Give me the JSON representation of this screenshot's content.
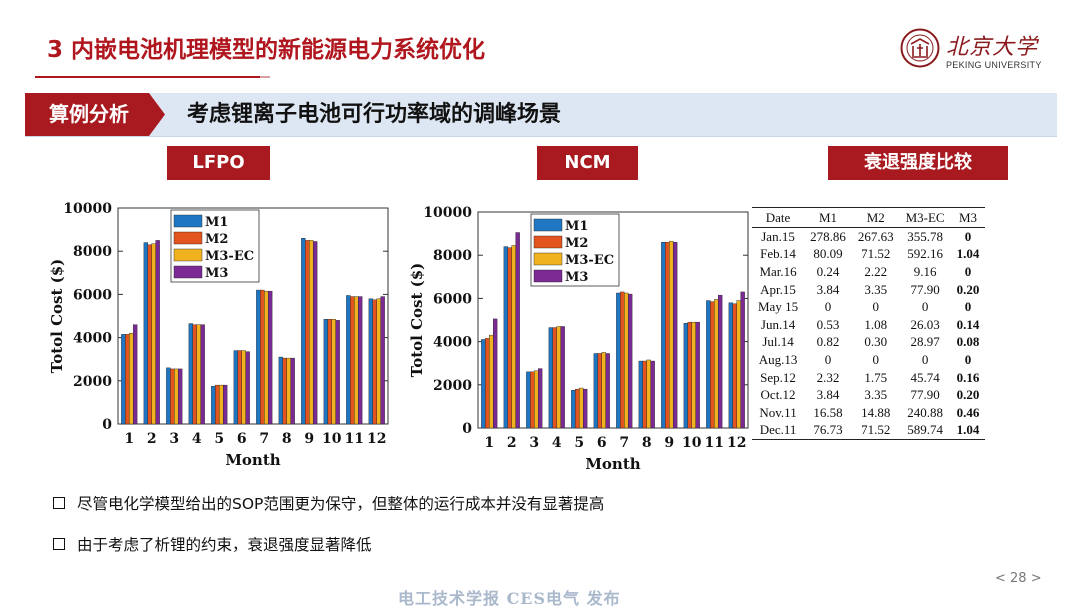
{
  "header": {
    "title": "3 内嵌电池机理模型的新能源电力系统优化",
    "logo_name": "北京大学",
    "logo_sub": "PEKING UNIVERSITY"
  },
  "section": {
    "tag": "算例分析",
    "subtitle": "考虑锂离子电池可行功率域的调峰场景"
  },
  "labels": {
    "lfpo": "LFPO",
    "ncm": "NCM",
    "degradation": "衰退强度比较"
  },
  "colors": {
    "M1": "#1f77c4",
    "M2": "#e3541e",
    "M3-EC": "#f0b21e",
    "M3": "#7b2a94",
    "brand_red": "#a81a1f"
  },
  "chart_data": [
    {
      "type": "bar",
      "name": "LFPO",
      "categories": [
        "1",
        "2",
        "3",
        "4",
        "5",
        "6",
        "7",
        "8",
        "9",
        "10",
        "11",
        "12"
      ],
      "xlabel": "Month",
      "ylabel": "Totol Cost ($)",
      "ylim": [
        0,
        10000
      ],
      "yticks": [
        0,
        2000,
        4000,
        6000,
        8000,
        10000
      ],
      "legend_position": "top-left",
      "series": [
        {
          "name": "M1",
          "values": [
            4150,
            8400,
            2600,
            4650,
            1750,
            3400,
            6200,
            3100,
            8600,
            4850,
            5950,
            5800
          ]
        },
        {
          "name": "M2",
          "values": [
            4150,
            8300,
            2550,
            4600,
            1800,
            3400,
            6200,
            3050,
            8500,
            4850,
            5900,
            5750
          ]
        },
        {
          "name": "M3-EC",
          "values": [
            4200,
            8350,
            2550,
            4600,
            1800,
            3400,
            6150,
            3050,
            8500,
            4850,
            5900,
            5800
          ]
        },
        {
          "name": "M3",
          "values": [
            4600,
            8500,
            2550,
            4600,
            1800,
            3350,
            6150,
            3050,
            8450,
            4800,
            5900,
            5900
          ]
        }
      ]
    },
    {
      "type": "bar",
      "name": "NCM",
      "categories": [
        "1",
        "2",
        "3",
        "4",
        "5",
        "6",
        "7",
        "8",
        "9",
        "10",
        "11",
        "12"
      ],
      "xlabel": "Month",
      "ylabel": "Totol Cost ($)",
      "ylim": [
        0,
        10000
      ],
      "yticks": [
        0,
        2000,
        4000,
        6000,
        8000,
        10000
      ],
      "legend_position": "top-left",
      "series": [
        {
          "name": "M1",
          "values": [
            4100,
            8400,
            2600,
            4650,
            1750,
            3450,
            6250,
            3100,
            8600,
            4850,
            5900,
            5800
          ]
        },
        {
          "name": "M2",
          "values": [
            4150,
            8350,
            2600,
            4650,
            1800,
            3450,
            6300,
            3100,
            8600,
            4900,
            5850,
            5750
          ]
        },
        {
          "name": "M3-EC",
          "values": [
            4300,
            8450,
            2650,
            4700,
            1850,
            3500,
            6250,
            3150,
            8650,
            4900,
            5950,
            5900
          ]
        },
        {
          "name": "M3",
          "values": [
            5050,
            9050,
            2750,
            4700,
            1800,
            3450,
            6200,
            3100,
            8600,
            4900,
            6150,
            6300
          ]
        }
      ]
    },
    {
      "type": "table",
      "name": "衰退强度比较",
      "columns": [
        "Date",
        "M1",
        "M2",
        "M3-EC",
        "M3"
      ],
      "rows": [
        [
          "Jan.15",
          "278.86",
          "267.63",
          "355.78",
          "0"
        ],
        [
          "Feb.14",
          "80.09",
          "71.52",
          "592.16",
          "1.04"
        ],
        [
          "Mar.16",
          "0.24",
          "2.22",
          "9.16",
          "0"
        ],
        [
          "Apr.15",
          "3.84",
          "3.35",
          "77.90",
          "0.20"
        ],
        [
          "May 15",
          "0",
          "0",
          "0",
          "0"
        ],
        [
          "Jun.14",
          "0.53",
          "1.08",
          "26.03",
          "0.14"
        ],
        [
          "Jul.14",
          "0.82",
          "0.30",
          "28.97",
          "0.08"
        ],
        [
          "Aug.13",
          "0",
          "0",
          "0",
          "0"
        ],
        [
          "Sep.12",
          "2.32",
          "1.75",
          "45.74",
          "0.16"
        ],
        [
          "Oct.12",
          "3.84",
          "3.35",
          "77.90",
          "0.20"
        ],
        [
          "Nov.11",
          "16.58",
          "14.88",
          "240.88",
          "0.46"
        ],
        [
          "Dec.11",
          "76.73",
          "71.52",
          "589.74",
          "1.04"
        ]
      ]
    }
  ],
  "bullets": [
    "尽管电化学模型给出的SOP范围更为保守，但整体的运行成本并没有显著提高",
    "由于考虑了析锂的约束，衰退强度显著降低"
  ],
  "footer": {
    "page": "< 28 >",
    "watermark": "电工技术学报 CES电气 发布"
  }
}
